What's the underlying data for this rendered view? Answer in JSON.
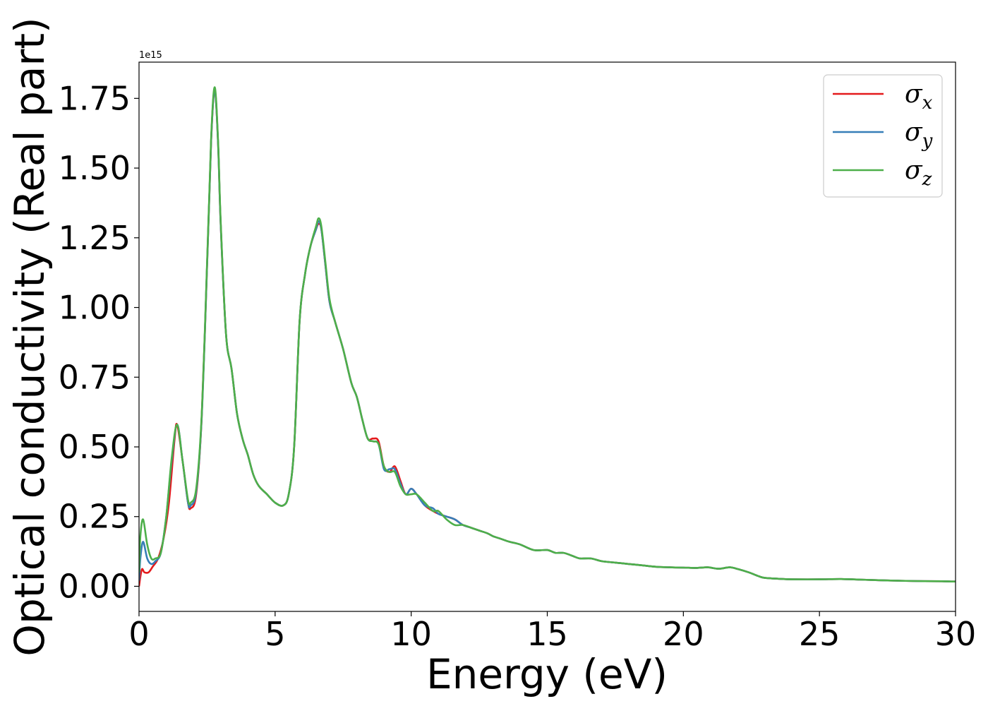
{
  "chart_data": {
    "type": "line",
    "title": "",
    "xlabel": "Energy (eV)",
    "ylabel": "Optical conductivity (Real part)",
    "y_offset_label": "1e15",
    "xlim": [
      0,
      30
    ],
    "ylim": [
      -0.09,
      1.88
    ],
    "x_ticks": [
      0,
      5,
      10,
      15,
      20,
      25,
      30
    ],
    "x_tick_labels": [
      "0",
      "5",
      "10",
      "15",
      "20",
      "25",
      "30"
    ],
    "y_ticks": [
      0.0,
      0.25,
      0.5,
      0.75,
      1.0,
      1.25,
      1.5,
      1.75
    ],
    "y_tick_labels": [
      "0.00",
      "0.25",
      "0.50",
      "0.75",
      "1.00",
      "1.25",
      "1.50",
      "1.75"
    ],
    "grid": false,
    "legend_position": "top-right",
    "legend": [
      {
        "symbol": "σ",
        "sub": "x",
        "color": "#e41a1c"
      },
      {
        "symbol": "σ",
        "sub": "y",
        "color": "#377eb8"
      },
      {
        "symbol": "σ",
        "sub": "z",
        "color": "#4daf4a"
      }
    ],
    "series": [
      {
        "color": "#e41a1c",
        "x": [
          0,
          0.1,
          0.2,
          0.35,
          0.5,
          0.7,
          0.9,
          1.1,
          1.3,
          1.4,
          1.6,
          1.8,
          1.9,
          2.1,
          2.3,
          2.5,
          2.65,
          2.78,
          2.9,
          3.0,
          3.2,
          3.4,
          3.6,
          3.8,
          4.0,
          4.2,
          4.4,
          4.7,
          5.0,
          5.3,
          5.5,
          5.7,
          5.9,
          6.1,
          6.3,
          6.5,
          6.6,
          6.7,
          6.85,
          7.0,
          7.2,
          7.5,
          7.8,
          8.0,
          8.2,
          8.4,
          8.6,
          8.8,
          9.0,
          9.2,
          9.4,
          9.6,
          9.8,
          10.0,
          10.2,
          10.5,
          10.8,
          11.0,
          11.3,
          11.6,
          11.9,
          12.2,
          12.5,
          12.8,
          13.0,
          13.3,
          13.6,
          14.0,
          14.5,
          15.0,
          15.3,
          15.6,
          15.9,
          16.2,
          16.6,
          17.0,
          17.5,
          18.0,
          18.5,
          19.0,
          19.5,
          20.0,
          20.5,
          20.9,
          21.3,
          21.7,
          22.0,
          22.4,
          22.8,
          23.0,
          23.5,
          24.0,
          25.0,
          25.8,
          26.5,
          27.5,
          28.5,
          29.5,
          30.0
        ],
        "values": [
          0.0,
          0.06,
          0.05,
          0.05,
          0.07,
          0.1,
          0.17,
          0.3,
          0.52,
          0.58,
          0.45,
          0.3,
          0.28,
          0.33,
          0.6,
          1.15,
          1.6,
          1.78,
          1.6,
          1.3,
          0.9,
          0.78,
          0.62,
          0.53,
          0.47,
          0.4,
          0.36,
          0.33,
          0.3,
          0.29,
          0.33,
          0.5,
          0.95,
          1.12,
          1.22,
          1.28,
          1.3,
          1.28,
          1.15,
          1.02,
          0.95,
          0.85,
          0.73,
          0.68,
          0.6,
          0.53,
          0.53,
          0.52,
          0.43,
          0.41,
          0.43,
          0.38,
          0.33,
          0.35,
          0.33,
          0.29,
          0.27,
          0.26,
          0.25,
          0.24,
          0.22,
          0.21,
          0.2,
          0.19,
          0.18,
          0.17,
          0.16,
          0.15,
          0.13,
          0.13,
          0.12,
          0.12,
          0.11,
          0.1,
          0.1,
          0.09,
          0.085,
          0.08,
          0.075,
          0.07,
          0.068,
          0.067,
          0.066,
          0.068,
          0.063,
          0.068,
          0.062,
          0.05,
          0.035,
          0.03,
          0.027,
          0.025,
          0.025,
          0.026,
          0.024,
          0.021,
          0.019,
          0.018,
          0.017
        ]
      },
      {
        "color": "#377eb8",
        "x": [
          0,
          0.05,
          0.15,
          0.3,
          0.45,
          0.6,
          0.8,
          1.0,
          1.2,
          1.4,
          1.6,
          1.8,
          1.9,
          2.1,
          2.3,
          2.5,
          2.65,
          2.78,
          2.9,
          3.0,
          3.2,
          3.4,
          3.6,
          3.8,
          4.0,
          4.2,
          4.4,
          4.7,
          5.0,
          5.3,
          5.5,
          5.7,
          5.9,
          6.1,
          6.3,
          6.5,
          6.6,
          6.7,
          6.85,
          7.0,
          7.2,
          7.5,
          7.8,
          8.0,
          8.2,
          8.4,
          8.6,
          8.8,
          9.0,
          9.2,
          9.4,
          9.6,
          9.8,
          10.0,
          10.2,
          10.5,
          10.8,
          11.0,
          11.3,
          11.6,
          11.9,
          12.2,
          12.5,
          12.8,
          13.0,
          13.3,
          13.6,
          14.0,
          14.5,
          15.0,
          15.3,
          15.6,
          15.9,
          16.2,
          16.6,
          17.0,
          17.5,
          18.0,
          18.5,
          19.0,
          19.5,
          20.0,
          20.5,
          20.9,
          21.3,
          21.7,
          22.0,
          22.4,
          22.8,
          23.0,
          23.5,
          24.0,
          25.0,
          25.8,
          26.5,
          27.5,
          28.5,
          29.5,
          30.0
        ],
        "values": [
          0.02,
          0.1,
          0.16,
          0.1,
          0.08,
          0.09,
          0.12,
          0.25,
          0.45,
          0.58,
          0.45,
          0.3,
          0.29,
          0.34,
          0.6,
          1.15,
          1.6,
          1.78,
          1.6,
          1.3,
          0.9,
          0.78,
          0.62,
          0.53,
          0.47,
          0.4,
          0.36,
          0.33,
          0.3,
          0.29,
          0.33,
          0.5,
          0.95,
          1.12,
          1.22,
          1.28,
          1.31,
          1.28,
          1.15,
          1.02,
          0.95,
          0.85,
          0.73,
          0.68,
          0.6,
          0.53,
          0.52,
          0.51,
          0.42,
          0.42,
          0.42,
          0.37,
          0.33,
          0.35,
          0.33,
          0.29,
          0.28,
          0.26,
          0.25,
          0.24,
          0.22,
          0.21,
          0.2,
          0.19,
          0.18,
          0.17,
          0.16,
          0.15,
          0.13,
          0.13,
          0.12,
          0.12,
          0.11,
          0.1,
          0.1,
          0.09,
          0.085,
          0.08,
          0.075,
          0.07,
          0.068,
          0.067,
          0.066,
          0.068,
          0.063,
          0.068,
          0.062,
          0.05,
          0.035,
          0.03,
          0.027,
          0.025,
          0.025,
          0.026,
          0.024,
          0.021,
          0.019,
          0.018,
          0.017
        ]
      },
      {
        "color": "#4daf4a",
        "x": [
          0,
          0.05,
          0.15,
          0.3,
          0.45,
          0.6,
          0.8,
          1.0,
          1.2,
          1.4,
          1.6,
          1.8,
          1.9,
          2.1,
          2.3,
          2.5,
          2.65,
          2.78,
          2.9,
          3.0,
          3.2,
          3.4,
          3.6,
          3.8,
          4.0,
          4.2,
          4.4,
          4.7,
          5.0,
          5.3,
          5.5,
          5.7,
          5.9,
          6.1,
          6.3,
          6.5,
          6.6,
          6.7,
          6.85,
          7.0,
          7.2,
          7.5,
          7.8,
          8.0,
          8.2,
          8.4,
          8.6,
          8.8,
          9.0,
          9.2,
          9.4,
          9.6,
          9.8,
          10.0,
          10.2,
          10.5,
          10.8,
          11.0,
          11.3,
          11.6,
          11.9,
          12.2,
          12.5,
          12.8,
          13.0,
          13.3,
          13.6,
          14.0,
          14.5,
          15.0,
          15.3,
          15.6,
          15.9,
          16.2,
          16.6,
          17.0,
          17.5,
          18.0,
          18.5,
          19.0,
          19.5,
          20.0,
          20.5,
          20.9,
          21.3,
          21.7,
          22.0,
          22.4,
          22.8,
          23.0,
          23.5,
          24.0,
          25.0,
          25.8,
          26.5,
          27.5,
          28.5,
          29.5,
          30.0
        ],
        "values": [
          0.05,
          0.18,
          0.24,
          0.15,
          0.1,
          0.1,
          0.12,
          0.25,
          0.46,
          0.58,
          0.45,
          0.31,
          0.3,
          0.35,
          0.61,
          1.16,
          1.61,
          1.79,
          1.61,
          1.31,
          0.9,
          0.78,
          0.62,
          0.53,
          0.47,
          0.4,
          0.36,
          0.33,
          0.3,
          0.29,
          0.33,
          0.5,
          0.95,
          1.12,
          1.22,
          1.29,
          1.32,
          1.29,
          1.16,
          1.03,
          0.95,
          0.85,
          0.73,
          0.68,
          0.6,
          0.53,
          0.52,
          0.51,
          0.43,
          0.41,
          0.41,
          0.36,
          0.33,
          0.33,
          0.33,
          0.3,
          0.27,
          0.27,
          0.24,
          0.22,
          0.22,
          0.21,
          0.2,
          0.19,
          0.18,
          0.17,
          0.16,
          0.15,
          0.13,
          0.13,
          0.12,
          0.12,
          0.11,
          0.1,
          0.1,
          0.09,
          0.085,
          0.08,
          0.075,
          0.07,
          0.068,
          0.067,
          0.066,
          0.068,
          0.063,
          0.068,
          0.062,
          0.05,
          0.035,
          0.03,
          0.027,
          0.025,
          0.025,
          0.026,
          0.024,
          0.021,
          0.019,
          0.018,
          0.017
        ]
      }
    ]
  }
}
